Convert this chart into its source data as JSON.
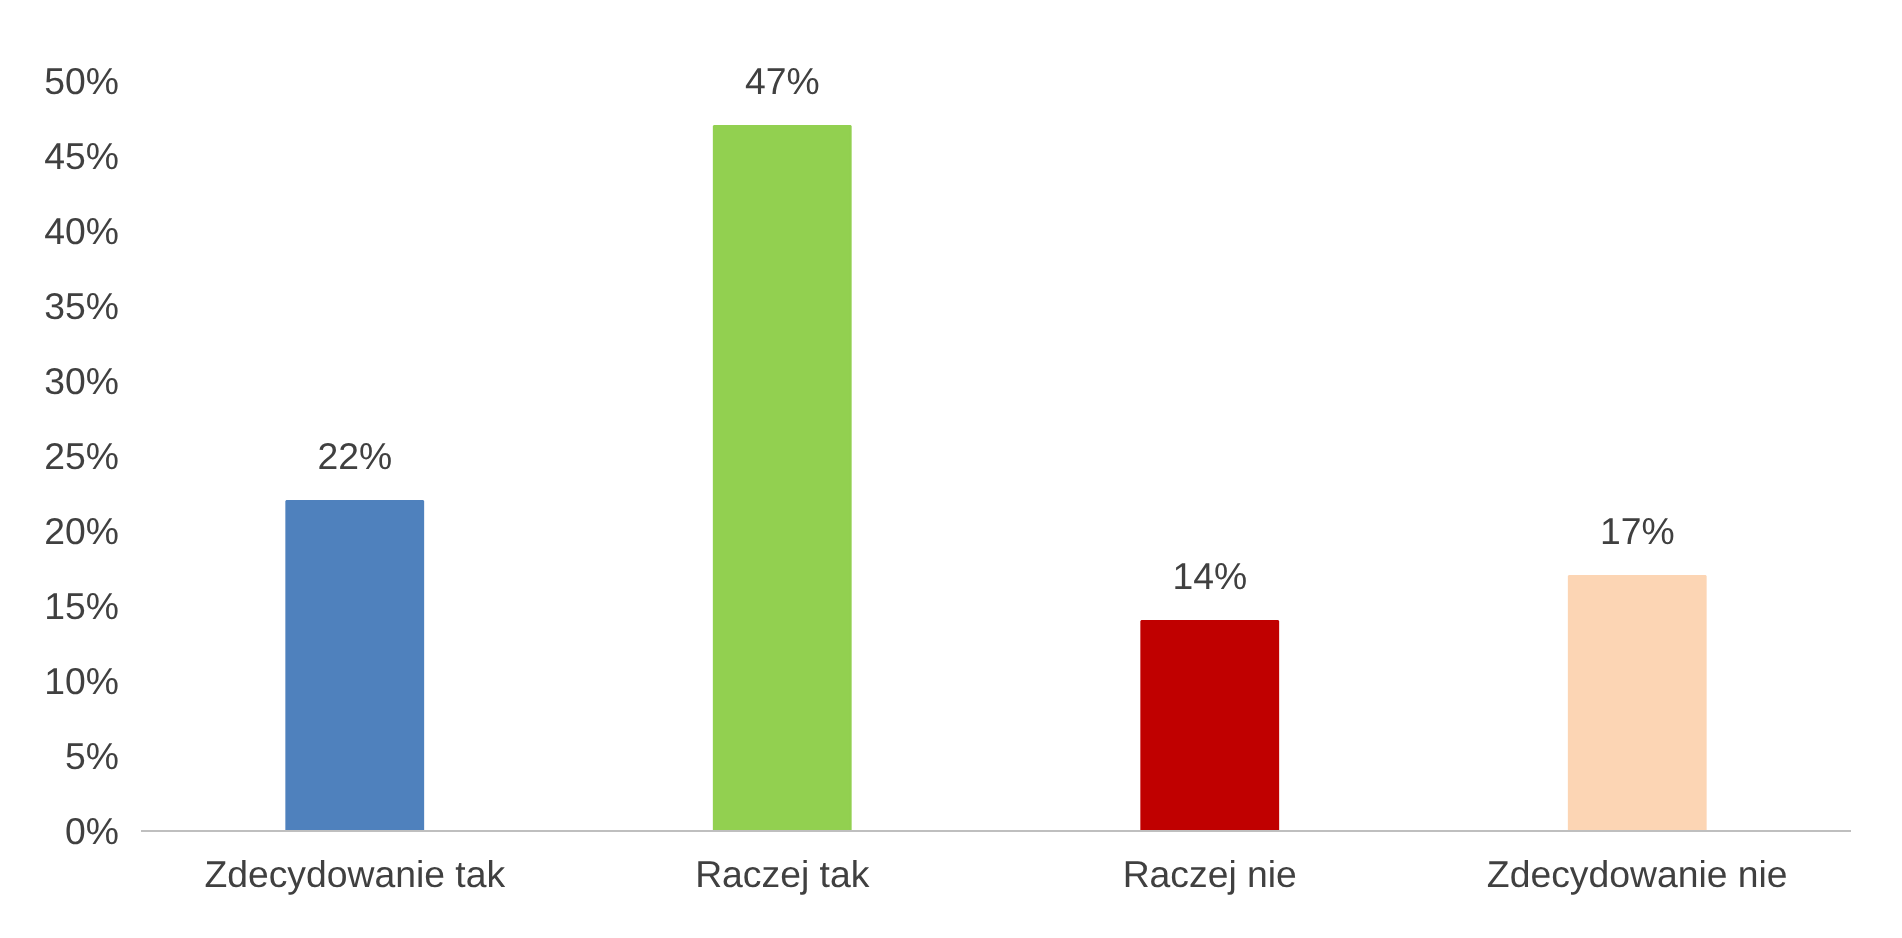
{
  "chart_data": {
    "type": "bar",
    "categories": [
      "Zdecydowanie tak",
      "Raczej tak",
      "Raczej nie",
      "Zdecydowanie nie"
    ],
    "values": [
      22,
      47,
      14,
      17
    ],
    "colors": [
      "#4f81bd",
      "#92d050",
      "#c00000",
      "#fcd5b4"
    ],
    "value_labels": [
      "22%",
      "47%",
      "14%",
      "17%"
    ],
    "ylim": [
      0,
      50
    ],
    "yticks": [
      {
        "value": 0,
        "label": "0%"
      },
      {
        "value": 5,
        "label": "5%"
      },
      {
        "value": 10,
        "label": "10%"
      },
      {
        "value": 15,
        "label": "15%"
      },
      {
        "value": 20,
        "label": "20%"
      },
      {
        "value": 25,
        "label": "25%"
      },
      {
        "value": 30,
        "label": "30%"
      },
      {
        "value": 35,
        "label": "35%"
      },
      {
        "value": 40,
        "label": "40%"
      },
      {
        "value": 45,
        "label": "45%"
      },
      {
        "value": 50,
        "label": "50%"
      }
    ],
    "grid": false
  }
}
